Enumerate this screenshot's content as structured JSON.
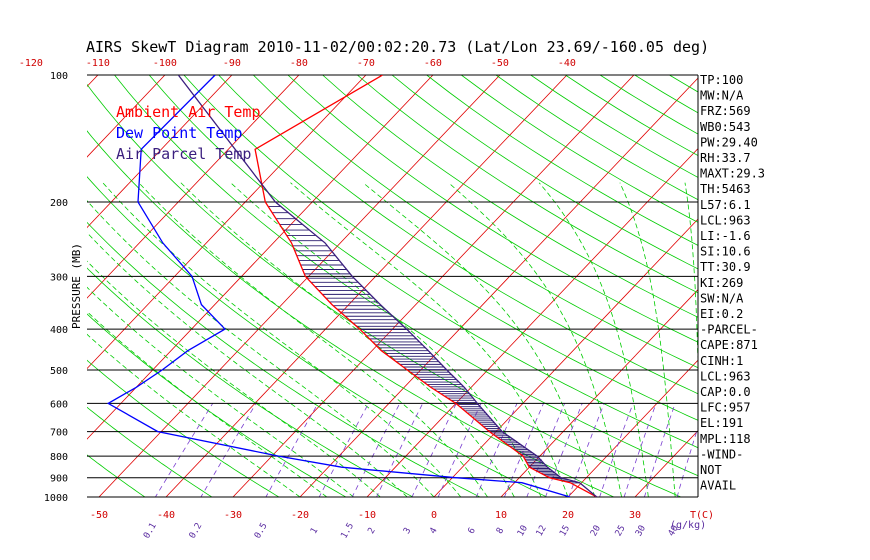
{
  "chart_data": {
    "type": "line",
    "title": "AIRS SkewT Diagram 2010-11-02/00:02:20.73 (Lat/Lon 23.69/-160.05 deg)",
    "ylabel": "PRESSURE (MB)",
    "xlabel_bottom_units": "T(C)",
    "mixing_ratio_units": "(g/kg)",
    "pressure_ticks": [
      100,
      200,
      300,
      400,
      500,
      600,
      700,
      800,
      900,
      1000
    ],
    "top_temp_ticks": [
      -120,
      -110,
      -100,
      -90,
      -80,
      -70,
      -60,
      -50,
      -40
    ],
    "bottom_temp_ticks": [
      -50,
      -40,
      -30,
      -20,
      -10,
      0,
      10,
      20,
      30
    ],
    "mixing_ratio_labels": [
      "0.1",
      "0.2",
      "0.5",
      "1",
      "1.5",
      "2",
      "3",
      "4",
      "6",
      "8",
      "10",
      "12",
      "15",
      "20",
      "25",
      "30",
      "40"
    ],
    "legend": [
      {
        "label": "Ambient Air Temp",
        "color": "#ff0000"
      },
      {
        "label": "Dew Point Temp",
        "color": "#0000ff"
      },
      {
        "label": "Air Parcel Temp",
        "color": "#3b1f7f"
      }
    ],
    "colors": {
      "isotherm": "#e00000",
      "dry_adiabat": "#00cc00",
      "moist_adiabat": "#00cc00",
      "mixing_ratio": "#7a3fd0",
      "isobar": "#000000",
      "hatch": "#2a1c6e"
    },
    "series": [
      {
        "name": "Ambient Air Temp",
        "color": "#ff0000",
        "points": [
          [
            100,
            -67.5
          ],
          [
            150,
            -76.0
          ],
          [
            200,
            -67.0
          ],
          [
            250,
            -57.3
          ],
          [
            300,
            -50.5
          ],
          [
            350,
            -42.5
          ],
          [
            400,
            -34.9
          ],
          [
            450,
            -28.6
          ],
          [
            500,
            -22.0
          ],
          [
            550,
            -16.0
          ],
          [
            600,
            -10.0
          ],
          [
            700,
            -1.0
          ],
          [
            800,
            7.5
          ],
          [
            850,
            10.0
          ],
          [
            900,
            14.5
          ],
          [
            925,
            18.3
          ],
          [
            1000,
            24.3
          ]
        ]
      },
      {
        "name": "Dew Point Temp",
        "color": "#0000ff",
        "points": [
          [
            100,
            -92.5
          ],
          [
            150,
            -93.0
          ],
          [
            200,
            -86.0
          ],
          [
            250,
            -76.5
          ],
          [
            300,
            -67.4
          ],
          [
            350,
            -62.0
          ],
          [
            400,
            -55.0
          ],
          [
            450,
            -57.5
          ],
          [
            500,
            -58.6
          ],
          [
            550,
            -60.0
          ],
          [
            600,
            -61.9
          ],
          [
            700,
            -50.5
          ],
          [
            800,
            -29.0
          ],
          [
            850,
            -18.0
          ],
          [
            900,
            0.5
          ],
          [
            925,
            11.1
          ],
          [
            1000,
            20.3
          ]
        ]
      },
      {
        "name": "Air Parcel Temp",
        "color": "#3b1f7f",
        "points": [
          [
            100,
            -98.0
          ],
          [
            200,
            -65.5
          ],
          [
            250,
            -52.3
          ],
          [
            300,
            -43.5
          ],
          [
            350,
            -35.3
          ],
          [
            400,
            -27.9
          ],
          [
            450,
            -21.6
          ],
          [
            500,
            -16.1
          ],
          [
            550,
            -11.0
          ],
          [
            600,
            -6.8
          ],
          [
            700,
            0.9
          ],
          [
            800,
            9.6
          ],
          [
            850,
            12.7
          ],
          [
            900,
            16.2
          ],
          [
            925,
            19.7
          ],
          [
            1000,
            24.3
          ]
        ]
      }
    ],
    "indices": [
      "TP:100",
      "MW:N/A",
      "FRZ:569",
      "WB0:543",
      "PW:29.40",
      "RH:33.7",
      "MAXT:29.3",
      "TH:5463",
      "L57:6.1",
      "LCL:963",
      "LI:-1.6",
      "SI:10.6",
      "TT:30.9",
      "KI:269",
      "SW:N/A",
      "EI:0.2",
      "-PARCEL-",
      "CAPE:871",
      "CINH:1",
      "LCL:963",
      "CAP:0.0",
      "LFC:957",
      "EL:191",
      "MPL:118",
      "-WIND-",
      "NOT",
      "AVAIL"
    ]
  }
}
